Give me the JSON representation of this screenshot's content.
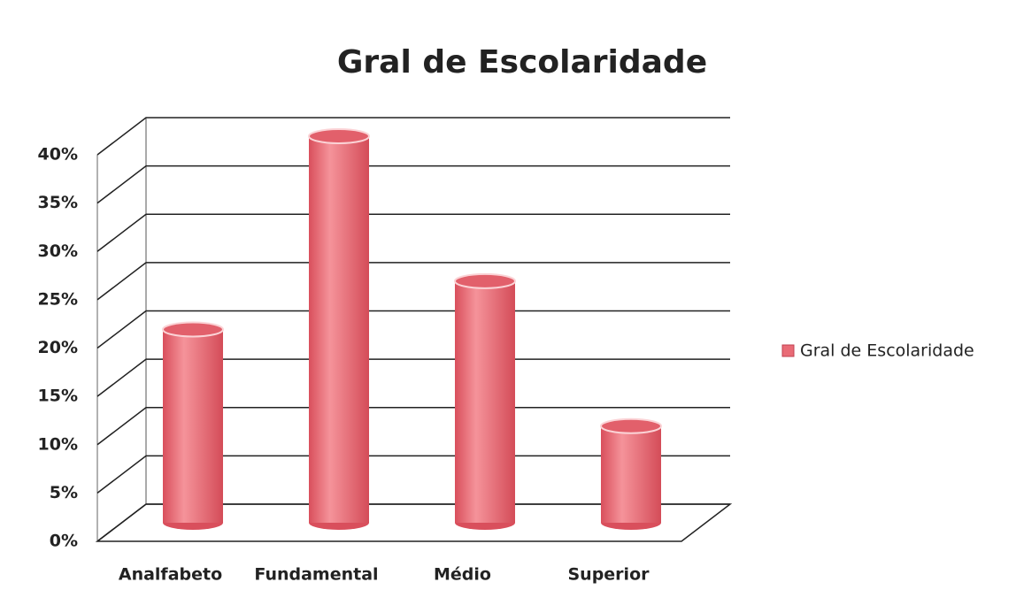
{
  "chart_data": {
    "type": "bar",
    "title": "Gral de Escolaridade",
    "categories": [
      "Analfabeto",
      "Fundamental",
      "Médio",
      "Superior"
    ],
    "series": [
      {
        "name": "Gral de Escolaridade",
        "color": "#e96b76",
        "values": [
          20,
          40,
          25,
          10
        ]
      }
    ],
    "ylim": [
      0,
      40
    ],
    "yticks": [
      {
        "value": 0,
        "label": "0%"
      },
      {
        "value": 5,
        "label": "5%"
      },
      {
        "value": 10,
        "label": "10%"
      },
      {
        "value": 15,
        "label": "15%"
      },
      {
        "value": 20,
        "label": "20%"
      },
      {
        "value": 25,
        "label": "25%"
      },
      {
        "value": 30,
        "label": "30%"
      },
      {
        "value": 35,
        "label": "35%"
      },
      {
        "value": 40,
        "label": "40%"
      }
    ],
    "grid": true,
    "legend": "right"
  }
}
